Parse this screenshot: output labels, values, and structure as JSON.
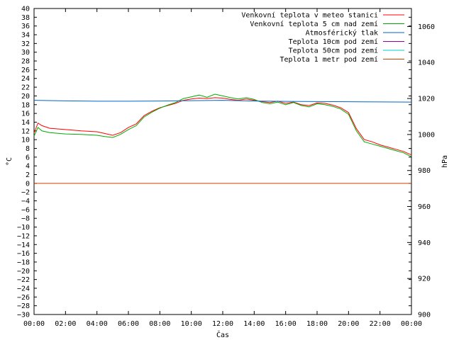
{
  "chart_data": {
    "type": "line",
    "title": "",
    "xlabel": "Čas",
    "ylabel": "°C",
    "y2label": "hPa",
    "x_tick_labels": [
      "00:00",
      "02:00",
      "04:00",
      "06:00",
      "08:00",
      "10:00",
      "12:00",
      "14:00",
      "16:00",
      "18:00",
      "20:00",
      "22:00",
      "00:00"
    ],
    "x_hours_range": [
      0,
      24
    ],
    "ylim": [
      -30,
      40
    ],
    "y_ticks": [
      40,
      38,
      36,
      34,
      32,
      30,
      28,
      26,
      24,
      22,
      20,
      18,
      16,
      14,
      12,
      10,
      8,
      6,
      4,
      2,
      0,
      -2,
      -4,
      -6,
      -8,
      -10,
      -12,
      -14,
      -16,
      -18,
      -20,
      -22,
      -24,
      -26,
      -28,
      -30
    ],
    "y2lim": [
      900,
      1070
    ],
    "y2_ticks": [
      1060,
      1040,
      1020,
      1000,
      980,
      960,
      940,
      920,
      900
    ],
    "grid": false,
    "legend_position": "top-right",
    "series": [
      {
        "name": "Venkovní teplota v meteo stanici",
        "color": "#ff0000",
        "axis": "left",
        "points": [
          [
            0,
            11.5
          ],
          [
            0.25,
            13.8
          ],
          [
            0.5,
            13.2
          ],
          [
            1,
            12.6
          ],
          [
            2,
            12.3
          ],
          [
            3,
            12
          ],
          [
            4,
            11.8
          ],
          [
            4.5,
            11.4
          ],
          [
            5,
            11
          ],
          [
            5.5,
            11.6
          ],
          [
            6,
            12.8
          ],
          [
            6.5,
            13.6
          ],
          [
            7,
            15.5
          ],
          [
            7.5,
            16.5
          ],
          [
            8,
            17.3
          ],
          [
            8.5,
            17.8
          ],
          [
            9,
            18.3
          ],
          [
            9.5,
            19
          ],
          [
            10,
            19.3
          ],
          [
            10.5,
            19.5
          ],
          [
            11,
            19.4
          ],
          [
            11.5,
            19.6
          ],
          [
            12,
            19.5
          ],
          [
            12.5,
            19.2
          ],
          [
            13,
            19
          ],
          [
            13.5,
            19.3
          ],
          [
            14,
            19
          ],
          [
            14.5,
            18.7
          ],
          [
            15,
            18.5
          ],
          [
            15.5,
            18.8
          ],
          [
            16,
            18.3
          ],
          [
            16.5,
            18.6
          ],
          [
            17,
            18
          ],
          [
            17.5,
            17.8
          ],
          [
            18,
            18.4
          ],
          [
            18.5,
            18.3
          ],
          [
            19,
            17.9
          ],
          [
            19.5,
            17.3
          ],
          [
            20,
            16.2
          ],
          [
            20.5,
            12.5
          ],
          [
            21,
            10
          ],
          [
            21.5,
            9.5
          ],
          [
            22,
            8.8
          ],
          [
            22.5,
            8.3
          ],
          [
            23,
            7.8
          ],
          [
            23.5,
            7.3
          ],
          [
            24,
            6.5
          ]
        ]
      },
      {
        "name": "Venkovní teplota 5 cm nad zemí",
        "color": "#00aa00",
        "axis": "left",
        "points": [
          [
            0,
            10.8
          ],
          [
            0.25,
            12.8
          ],
          [
            0.5,
            12
          ],
          [
            1,
            11.6
          ],
          [
            2,
            11.3
          ],
          [
            3,
            11.2
          ],
          [
            4,
            11
          ],
          [
            4.5,
            10.7
          ],
          [
            5,
            10.5
          ],
          [
            5.5,
            11.2
          ],
          [
            6,
            12.3
          ],
          [
            6.5,
            13.2
          ],
          [
            7,
            15.2
          ],
          [
            7.5,
            16.3
          ],
          [
            8,
            17.2
          ],
          [
            8.5,
            17.9
          ],
          [
            9,
            18.5
          ],
          [
            9.5,
            19.4
          ],
          [
            10,
            19.8
          ],
          [
            10.5,
            20.2
          ],
          [
            11,
            19.7
          ],
          [
            11.5,
            20.4
          ],
          [
            12,
            20
          ],
          [
            12.5,
            19.6
          ],
          [
            13,
            19.3
          ],
          [
            13.5,
            19.6
          ],
          [
            14,
            19.2
          ],
          [
            14.5,
            18.5
          ],
          [
            15,
            18.2
          ],
          [
            15.5,
            18.6
          ],
          [
            16,
            18
          ],
          [
            16.5,
            18.5
          ],
          [
            17,
            17.8
          ],
          [
            17.5,
            17.5
          ],
          [
            18,
            18.2
          ],
          [
            18.5,
            18
          ],
          [
            19,
            17.6
          ],
          [
            19.5,
            17
          ],
          [
            20,
            15.8
          ],
          [
            20.5,
            12
          ],
          [
            21,
            9.5
          ],
          [
            21.5,
            9
          ],
          [
            22,
            8.5
          ],
          [
            22.5,
            8
          ],
          [
            23,
            7.5
          ],
          [
            23.5,
            7
          ],
          [
            24,
            6.1
          ]
        ]
      },
      {
        "name": "Atmosférický tlak",
        "color": "#0066cc",
        "axis": "right",
        "points": [
          [
            0,
            1019
          ],
          [
            2,
            1018.7
          ],
          [
            4,
            1018.5
          ],
          [
            6,
            1018.5
          ],
          [
            8,
            1018.6
          ],
          [
            10,
            1018.8
          ],
          [
            12,
            1019
          ],
          [
            14,
            1018.6
          ],
          [
            16,
            1018.4
          ],
          [
            18,
            1018.3
          ],
          [
            20,
            1018.2
          ],
          [
            22,
            1018.1
          ],
          [
            24,
            1018
          ]
        ]
      },
      {
        "name": "Teplota 10cm pod zemí",
        "color": "#990099",
        "axis": "left",
        "points": []
      },
      {
        "name": "Teplota 50cm pod zemí",
        "color": "#00cccc",
        "axis": "left",
        "points": []
      },
      {
        "name": "Teplota 1 metr pod zemí",
        "color": "#cc4400",
        "axis": "left",
        "points": [
          [
            0,
            0
          ],
          [
            24,
            0
          ]
        ]
      }
    ]
  }
}
